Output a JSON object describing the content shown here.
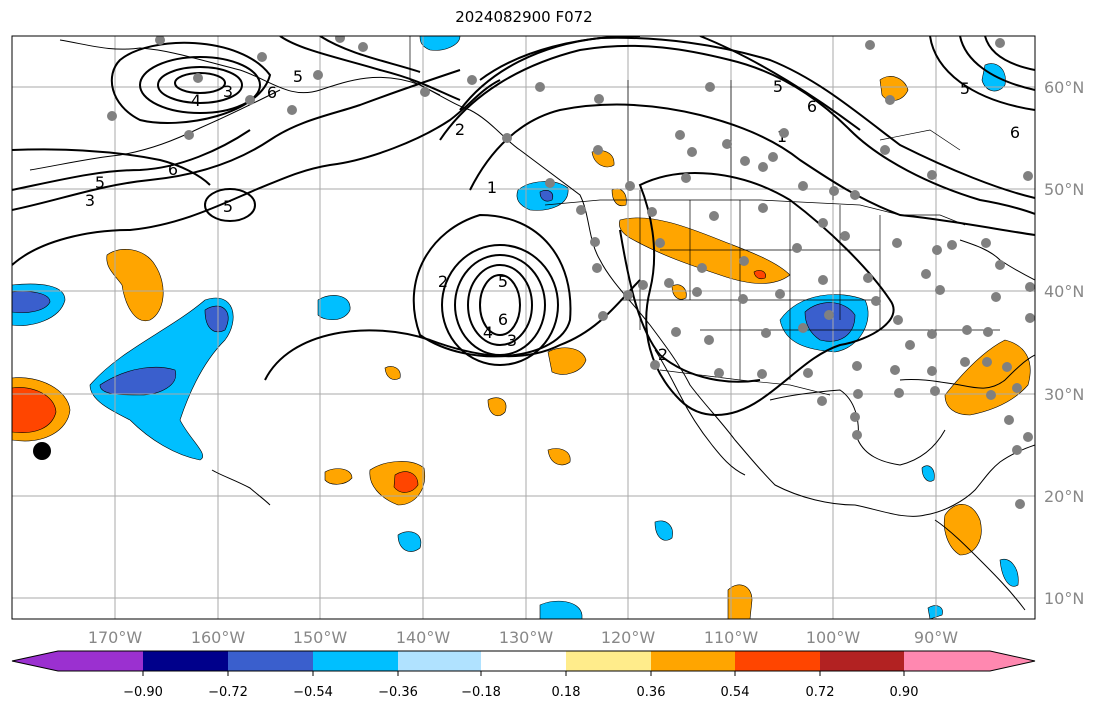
{
  "title": "2024082900 F072",
  "map": {
    "lon_labels": [
      "170°W",
      "160°W",
      "150°W",
      "140°W",
      "130°W",
      "120°W",
      "110°W",
      "100°W",
      "90°W"
    ],
    "lat_labels": [
      "60°N",
      "50°N",
      "40°N",
      "30°N",
      "20°N",
      "10°N"
    ],
    "contour_labels": [
      "3",
      "4",
      "6",
      "5",
      "3",
      "5",
      "5",
      "6",
      "2",
      "2",
      "1",
      "5",
      "6",
      "4",
      "3",
      "2",
      "1",
      "5",
      "6",
      "5",
      "6"
    ]
  },
  "colorbar": {
    "ticks": [
      "−0.90",
      "−0.72",
      "−0.54",
      "−0.36",
      "−0.18",
      "0.18",
      "0.36",
      "0.54",
      "0.72",
      "0.90"
    ],
    "colors": [
      "#9b30d0",
      "#00008b",
      "#3a5fcd",
      "#00bfff",
      "#b0e2ff",
      "#ffffff",
      "#ffec8b",
      "#ffa500",
      "#ff4500",
      "#b22222",
      "#ff88b0"
    ]
  }
}
